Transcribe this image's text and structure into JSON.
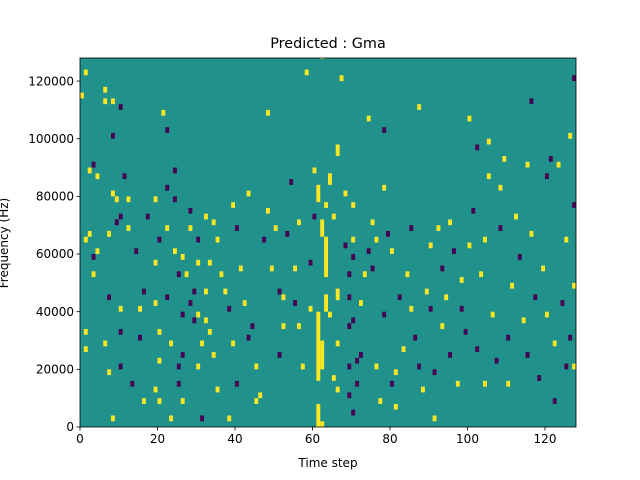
{
  "chart_data": {
    "type": "heatmap",
    "title": "Predicted : Gma",
    "xlabel": "Time step",
    "ylabel": "Frequency (Hz)",
    "xlim": [
      0,
      128
    ],
    "ylim": [
      0,
      128000
    ],
    "n_time_steps": 128,
    "n_frequency_bins": 64,
    "xticks": [
      0,
      20,
      40,
      60,
      80,
      100,
      120
    ],
    "yticks": [
      0,
      20000,
      40000,
      60000,
      80000,
      100000,
      120000
    ],
    "ytick_labels": [
      "0",
      "20000",
      "40000",
      "60000",
      "80000",
      "100000",
      "120000"
    ],
    "colormap": {
      "low": "#440154",
      "mid": "#21918c",
      "high": "#fde725"
    },
    "background_value": 0,
    "values_legend": {
      "-1": "low",
      "0": "mid",
      "1": "high"
    },
    "cells": [
      [
        1,
        123000,
        1
      ],
      [
        0,
        115000,
        1
      ],
      [
        2,
        89000,
        1
      ],
      [
        2,
        67000,
        1
      ],
      [
        1,
        64000,
        1
      ],
      [
        1,
        33000,
        1
      ],
      [
        1,
        27000,
        1
      ],
      [
        3,
        91000,
        -1
      ],
      [
        3,
        59000,
        -1
      ],
      [
        3,
        52000,
        1
      ],
      [
        4,
        61000,
        1
      ],
      [
        4,
        86000,
        1
      ],
      [
        6,
        117000,
        1
      ],
      [
        6,
        113000,
        1
      ],
      [
        7,
        66000,
        1
      ],
      [
        7,
        44000,
        -1
      ],
      [
        6,
        28000,
        1
      ],
      [
        7,
        18000,
        1
      ],
      [
        8,
        112000,
        1
      ],
      [
        8,
        100000,
        -1
      ],
      [
        8,
        81000,
        1
      ],
      [
        8,
        2000,
        1
      ],
      [
        9,
        79000,
        1
      ],
      [
        9,
        70000,
        -1
      ],
      [
        10,
        110000,
        -1
      ],
      [
        10,
        72000,
        -1
      ],
      [
        10,
        40000,
        1
      ],
      [
        10,
        21000,
        -1
      ],
      [
        10,
        33000,
        -1
      ],
      [
        11,
        86000,
        -1
      ],
      [
        12,
        79000,
        1
      ],
      [
        12,
        68000,
        1
      ],
      [
        13,
        15000,
        -1
      ],
      [
        14,
        60000,
        -1
      ],
      [
        15,
        40000,
        1
      ],
      [
        15,
        30000,
        -1
      ],
      [
        16,
        9000,
        1
      ],
      [
        16,
        47000,
        -1
      ],
      [
        17,
        73000,
        -1
      ],
      [
        19,
        78000,
        1
      ],
      [
        19,
        56000,
        1
      ],
      [
        19,
        43000,
        1
      ],
      [
        19,
        13000,
        1
      ],
      [
        20,
        64000,
        -1
      ],
      [
        20,
        33000,
        1
      ],
      [
        20,
        23000,
        1
      ],
      [
        20,
        8000,
        1
      ],
      [
        21,
        108000,
        1
      ],
      [
        22,
        102000,
        -1
      ],
      [
        22,
        82000,
        -1
      ],
      [
        22,
        68000,
        1
      ],
      [
        22,
        44000,
        -1
      ],
      [
        23,
        3000,
        1
      ],
      [
        23,
        29000,
        1
      ],
      [
        24,
        89000,
        -1
      ],
      [
        24,
        79000,
        -1
      ],
      [
        24,
        61000,
        1
      ],
      [
        25,
        52000,
        -1
      ],
      [
        25,
        20000,
        -1
      ],
      [
        25,
        14000,
        -1
      ],
      [
        26,
        59000,
        1
      ],
      [
        26,
        39000,
        -1
      ],
      [
        26,
        24000,
        -1
      ],
      [
        26,
        8000,
        1
      ],
      [
        27,
        53000,
        1
      ],
      [
        28,
        42000,
        -1
      ],
      [
        28,
        69000,
        1
      ],
      [
        28,
        75000,
        -1
      ],
      [
        29,
        47000,
        -1
      ],
      [
        29,
        36000,
        -1
      ],
      [
        30,
        64000,
        -1
      ],
      [
        30,
        56000,
        1
      ],
      [
        30,
        39000,
        1
      ],
      [
        30,
        20000,
        1
      ],
      [
        31,
        28000,
        1
      ],
      [
        31,
        2000,
        -1
      ],
      [
        32,
        72000,
        1
      ],
      [
        32,
        46000,
        1
      ],
      [
        32,
        36000,
        1
      ],
      [
        33,
        57000,
        1
      ],
      [
        33,
        33000,
        1
      ],
      [
        34,
        70000,
        1
      ],
      [
        34,
        24000,
        1
      ],
      [
        35,
        64000,
        1
      ],
      [
        35,
        12000,
        1
      ],
      [
        36,
        53000,
        1
      ],
      [
        37,
        46000,
        1
      ],
      [
        38,
        41000,
        -1
      ],
      [
        38,
        3000,
        1
      ],
      [
        39,
        76000,
        1
      ],
      [
        39,
        28000,
        1
      ],
      [
        40,
        69000,
        -1
      ],
      [
        40,
        15000,
        -1
      ],
      [
        41,
        54000,
        1
      ],
      [
        42,
        43000,
        1
      ],
      [
        43,
        80000,
        1
      ],
      [
        43,
        30000,
        -1
      ],
      [
        44,
        35000,
        -1
      ],
      [
        45,
        20000,
        1
      ],
      [
        45,
        8000,
        1
      ],
      [
        46,
        11000,
        1
      ],
      [
        47,
        64000,
        -1
      ],
      [
        48,
        108000,
        1
      ],
      [
        48,
        75000,
        1
      ],
      [
        49,
        55000,
        1
      ],
      [
        50,
        68000,
        1
      ],
      [
        51,
        47000,
        -1
      ],
      [
        51,
        24000,
        -1
      ],
      [
        52,
        44000,
        1
      ],
      [
        52,
        35000,
        1
      ],
      [
        53,
        66000,
        -1
      ],
      [
        54,
        84000,
        -1
      ],
      [
        55,
        54000,
        1
      ],
      [
        55,
        43000,
        -1
      ],
      [
        56,
        71000,
        1
      ],
      [
        56,
        35000,
        1
      ],
      [
        57,
        21000,
        1
      ],
      [
        58,
        123000,
        1
      ],
      [
        59,
        56000,
        -1
      ],
      [
        59,
        40000,
        1
      ],
      [
        60,
        88000,
        1
      ],
      [
        60,
        72000,
        -1
      ]
    ],
    "band_cells": [
      [
        61,
        0,
        8,
        1
      ],
      [
        62,
        0,
        1
      ],
      [
        61,
        16,
        40,
        1
      ],
      [
        62,
        20,
        30,
        1
      ],
      [
        63,
        52,
        66,
        1
      ],
      [
        62,
        66,
        72,
        1
      ],
      [
        61,
        78,
        84,
        1
      ],
      [
        64,
        84,
        88,
        1
      ],
      [
        63,
        40,
        46,
        1
      ],
      [
        66,
        94,
        98,
        1
      ],
      [
        66,
        44,
        48,
        1
      ]
    ],
    "extra_cells": [
      [
        62,
        128000,
        1
      ],
      [
        63,
        77000,
        1
      ],
      [
        64,
        38000,
        1
      ],
      [
        65,
        16000,
        1
      ],
      [
        65,
        72000,
        1
      ],
      [
        66,
        12000,
        1
      ],
      [
        66,
        28000,
        1
      ],
      [
        67,
        120000,
        1
      ],
      [
        68,
        62000,
        -1
      ],
      [
        68,
        80000,
        1
      ],
      [
        69,
        52000,
        -1
      ],
      [
        69,
        44000,
        -1
      ],
      [
        69,
        34000,
        -1
      ],
      [
        69,
        20000,
        -1
      ],
      [
        69,
        11000,
        -1
      ],
      [
        70,
        76000,
        1
      ],
      [
        70,
        65000,
        1
      ],
      [
        70,
        59000,
        -1
      ],
      [
        70,
        37000,
        -1
      ],
      [
        70,
        5000,
        -1
      ],
      [
        71,
        23000,
        -1
      ],
      [
        71,
        14000,
        -1
      ],
      [
        72,
        42000,
        1
      ],
      [
        72,
        25000,
        -1
      ],
      [
        73,
        52000,
        1
      ],
      [
        74,
        60000,
        -1
      ],
      [
        74,
        107000,
        1
      ],
      [
        75,
        71000,
        1
      ],
      [
        75,
        54000,
        -1
      ],
      [
        76,
        64000,
        1
      ],
      [
        76,
        21000,
        1
      ],
      [
        77,
        8000,
        1
      ],
      [
        78,
        103000,
        -1
      ],
      [
        78,
        82000,
        1
      ],
      [
        78,
        38000,
        -1
      ],
      [
        79,
        66000,
        -1
      ],
      [
        80,
        61000,
        1
      ],
      [
        80,
        15000,
        -1
      ],
      [
        81,
        18000,
        1
      ],
      [
        81,
        7000,
        1
      ],
      [
        82,
        44000,
        -1
      ],
      [
        83,
        26000,
        1
      ],
      [
        84,
        52000,
        1
      ],
      [
        85,
        68000,
        -1
      ],
      [
        85,
        40000,
        1
      ],
      [
        86,
        30000,
        -1
      ],
      [
        87,
        111000,
        1
      ],
      [
        87,
        21000,
        -1
      ],
      [
        88,
        12000,
        1
      ],
      [
        89,
        47000,
        1
      ],
      [
        90,
        62000,
        1
      ],
      [
        90,
        40000,
        -1
      ],
      [
        91,
        3000,
        1
      ],
      [
        91,
        18000,
        -1
      ],
      [
        92,
        69000,
        1
      ],
      [
        93,
        54000,
        -1
      ],
      [
        93,
        34000,
        1
      ],
      [
        94,
        44000,
        1
      ],
      [
        95,
        71000,
        1
      ],
      [
        95,
        25000,
        -1
      ],
      [
        96,
        60000,
        -1
      ],
      [
        97,
        15000,
        1
      ],
      [
        98,
        51000,
        1
      ],
      [
        98,
        41000,
        -1
      ],
      [
        99,
        33000,
        -1
      ],
      [
        100,
        107000,
        1
      ],
      [
        100,
        62000,
        1
      ],
      [
        101,
        74000,
        -1
      ],
      [
        102,
        96000,
        -1
      ],
      [
        102,
        27000,
        -1
      ],
      [
        103,
        52000,
        1
      ],
      [
        104,
        64000,
        1
      ],
      [
        104,
        14000,
        1
      ],
      [
        105,
        98000,
        1
      ],
      [
        105,
        86000,
        1
      ],
      [
        106,
        38000,
        1
      ],
      [
        107,
        22000,
        -1
      ],
      [
        108,
        69000,
        -1
      ],
      [
        108,
        82000,
        1
      ],
      [
        109,
        93000,
        1
      ],
      [
        110,
        30000,
        -1
      ],
      [
        110,
        14000,
        1
      ],
      [
        111,
        49000,
        1
      ],
      [
        112,
        72000,
        1
      ],
      [
        113,
        59000,
        -1
      ],
      [
        114,
        36000,
        1
      ],
      [
        115,
        91000,
        1
      ],
      [
        115,
        25000,
        -1
      ],
      [
        116,
        113000,
        -1
      ],
      [
        116,
        66000,
        1
      ],
      [
        117,
        44000,
        -1
      ],
      [
        118,
        17000,
        -1
      ],
      [
        119,
        55000,
        1
      ],
      [
        120,
        38000,
        1
      ],
      [
        120,
        86000,
        -1
      ],
      [
        121,
        92000,
        -1
      ],
      [
        122,
        8000,
        -1
      ],
      [
        122,
        28000,
        1
      ],
      [
        123,
        90000,
        1
      ],
      [
        124,
        42000,
        -1
      ],
      [
        125,
        20000,
        -1
      ],
      [
        125,
        64000,
        1
      ],
      [
        126,
        100000,
        1
      ],
      [
        126,
        31000,
        -1
      ],
      [
        127,
        120000,
        -1
      ],
      [
        127,
        76000,
        -1
      ],
      [
        127,
        20000,
        1
      ],
      [
        127,
        48000,
        1
      ]
    ]
  }
}
